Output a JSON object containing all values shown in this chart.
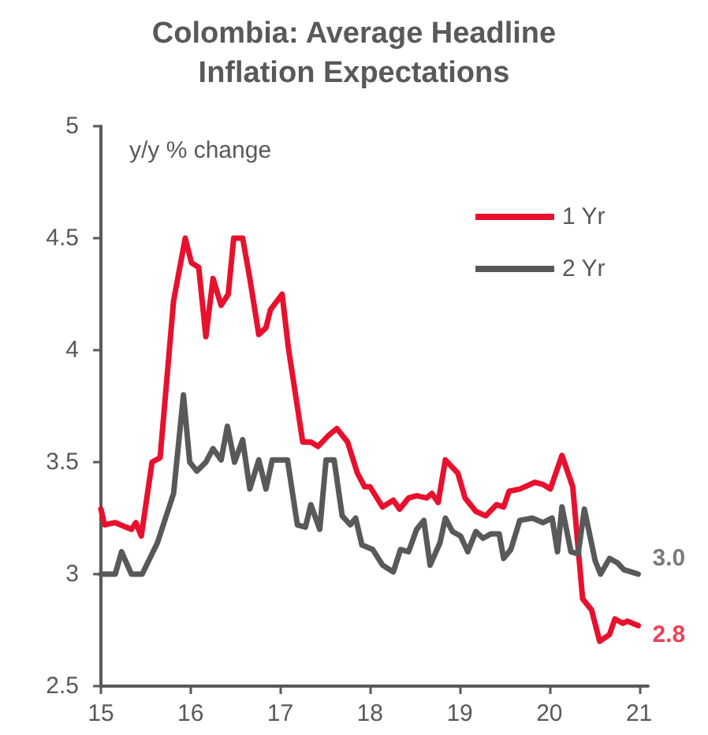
{
  "chart_data": {
    "type": "line",
    "title": "Colombia: Average Headline\nInflation Expectations",
    "ylabel": "y/y % change",
    "xlim": [
      15,
      21.1
    ],
    "xticks": [
      15,
      16,
      17,
      18,
      19,
      20,
      21
    ],
    "ylim": [
      2.5,
      5
    ],
    "yticks": [
      2.5,
      3,
      3.5,
      4,
      4.5,
      5
    ],
    "grid": false,
    "legend": "top right",
    "marker": "none",
    "line_style": "solid",
    "annotations": [
      {
        "text": "3.0",
        "x": 20.99,
        "y": 3.0
      },
      {
        "text": "2.8",
        "x": 20.99,
        "y": 2.77
      }
    ],
    "series": [
      {
        "name": "1 Yr",
        "color": "#e8112d",
        "x": [
          15.0,
          15.04,
          15.16,
          15.34,
          15.39,
          15.45,
          15.57,
          15.66,
          15.81,
          15.94,
          16.01,
          16.09,
          16.17,
          16.25,
          16.34,
          16.42,
          16.48,
          16.58,
          16.66,
          16.76,
          16.84,
          16.89,
          17.02,
          17.09,
          17.25,
          17.34,
          17.42,
          17.54,
          17.63,
          17.75,
          17.86,
          17.94,
          18.0,
          18.14,
          18.26,
          18.33,
          18.43,
          18.52,
          18.63,
          18.69,
          18.76,
          18.84,
          18.98,
          19.06,
          19.18,
          19.29,
          19.41,
          19.49,
          19.55,
          19.67,
          19.84,
          19.93,
          20.01,
          20.14,
          20.26,
          20.37,
          20.47,
          20.56,
          20.67,
          20.73,
          20.82,
          20.87,
          20.93,
          20.99
        ],
        "values": [
          3.29,
          3.22,
          3.23,
          3.2,
          3.23,
          3.17,
          3.5,
          3.52,
          4.22,
          4.5,
          4.39,
          4.37,
          4.06,
          4.32,
          4.2,
          4.25,
          4.5,
          4.5,
          4.32,
          4.07,
          4.1,
          4.18,
          4.25,
          4.01,
          3.59,
          3.59,
          3.57,
          3.62,
          3.65,
          3.59,
          3.45,
          3.39,
          3.39,
          3.3,
          3.33,
          3.29,
          3.34,
          3.35,
          3.34,
          3.36,
          3.32,
          3.51,
          3.45,
          3.34,
          3.28,
          3.26,
          3.31,
          3.3,
          3.37,
          3.38,
          3.41,
          3.4,
          3.38,
          3.53,
          3.39,
          2.89,
          2.84,
          2.7,
          2.73,
          2.8,
          2.78,
          2.79,
          2.78,
          2.77
        ]
      },
      {
        "name": "2 Yr",
        "color": "#595959",
        "x": [
          15.0,
          15.16,
          15.23,
          15.34,
          15.46,
          15.63,
          15.81,
          15.92,
          15.99,
          16.07,
          16.17,
          16.25,
          16.34,
          16.41,
          16.49,
          16.58,
          16.66,
          16.76,
          16.84,
          16.91,
          17.08,
          17.19,
          17.28,
          17.34,
          17.44,
          17.51,
          17.6,
          17.69,
          17.78,
          17.84,
          17.91,
          18.03,
          18.14,
          18.26,
          18.34,
          18.43,
          18.52,
          18.6,
          18.67,
          18.78,
          18.84,
          18.92,
          19.01,
          19.09,
          19.18,
          19.26,
          19.35,
          19.44,
          19.49,
          19.57,
          19.67,
          19.81,
          19.93,
          20.03,
          20.09,
          20.14,
          20.24,
          20.32,
          20.39,
          20.51,
          20.57,
          20.67,
          20.76,
          20.83,
          20.91,
          20.99
        ],
        "values": [
          3.0,
          3.0,
          3.1,
          3.0,
          3.0,
          3.14,
          3.36,
          3.8,
          3.5,
          3.46,
          3.5,
          3.56,
          3.51,
          3.66,
          3.5,
          3.6,
          3.38,
          3.51,
          3.38,
          3.51,
          3.51,
          3.22,
          3.21,
          3.31,
          3.2,
          3.51,
          3.51,
          3.26,
          3.22,
          3.25,
          3.13,
          3.11,
          3.04,
          3.01,
          3.11,
          3.1,
          3.2,
          3.24,
          3.04,
          3.14,
          3.25,
          3.19,
          3.17,
          3.1,
          3.19,
          3.16,
          3.18,
          3.18,
          3.07,
          3.11,
          3.24,
          3.25,
          3.23,
          3.25,
          3.1,
          3.3,
          3.1,
          3.09,
          3.29,
          3.06,
          3.0,
          3.07,
          3.05,
          3.02,
          3.01,
          3.0
        ]
      }
    ]
  }
}
